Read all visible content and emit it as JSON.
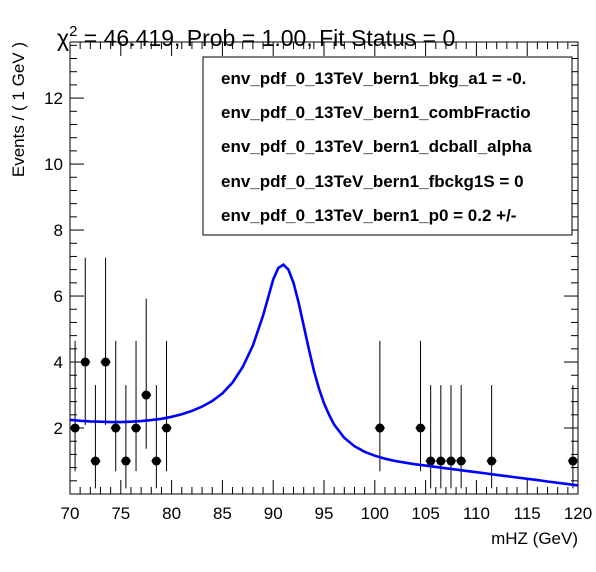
{
  "chart_data": {
    "type": "scatter",
    "title_prefix": "χ",
    "title_sup": "2",
    "title_rest": " = 46.419, Prob = 1.00, Fit Status = 0",
    "xlabel": "mHZ (GeV)",
    "ylabel": "Events / ( 1 GeV )",
    "xlim": [
      70,
      120
    ],
    "ylim": [
      0,
      13.7
    ],
    "x_ticks": [
      70,
      75,
      80,
      85,
      90,
      95,
      100,
      105,
      110,
      115,
      120
    ],
    "y_ticks": [
      2,
      4,
      6,
      8,
      10,
      12
    ],
    "legend_placement": "top-right",
    "legend": [
      "env_pdf_0_13TeV_bern1_bkg_a1 = -0.",
      "env_pdf_0_13TeV_bern1_combFractio",
      "env_pdf_0_13TeV_bern1_dcball_alpha",
      "env_pdf_0_13TeV_bern1_fbckg1S =  0",
      "env_pdf_0_13TeV_bern1_p0 =  0.2 +/-"
    ],
    "points": [
      {
        "x": 70.5,
        "y": 2,
        "lo": 1.31,
        "hi": 2.64
      },
      {
        "x": 71.5,
        "y": 4,
        "lo": 1.91,
        "hi": 3.16
      },
      {
        "x": 72.5,
        "y": 1,
        "lo": 0.83,
        "hi": 2.3
      },
      {
        "x": 73.5,
        "y": 4,
        "lo": 1.91,
        "hi": 3.16
      },
      {
        "x": 74.5,
        "y": 2,
        "lo": 1.31,
        "hi": 2.64
      },
      {
        "x": 75.5,
        "y": 1,
        "lo": 0.83,
        "hi": 2.3
      },
      {
        "x": 76.5,
        "y": 2,
        "lo": 1.31,
        "hi": 2.64
      },
      {
        "x": 77.5,
        "y": 3,
        "lo": 1.63,
        "hi": 2.92
      },
      {
        "x": 78.5,
        "y": 1,
        "lo": 0.83,
        "hi": 2.3
      },
      {
        "x": 79.5,
        "y": 2,
        "lo": 1.31,
        "hi": 2.64
      },
      {
        "x": 100.5,
        "y": 2,
        "lo": 1.31,
        "hi": 2.64
      },
      {
        "x": 104.5,
        "y": 2,
        "lo": 1.31,
        "hi": 2.64
      },
      {
        "x": 105.5,
        "y": 1,
        "lo": 0.83,
        "hi": 2.3
      },
      {
        "x": 106.5,
        "y": 1,
        "lo": 0.83,
        "hi": 2.3
      },
      {
        "x": 107.5,
        "y": 1,
        "lo": 0.83,
        "hi": 2.3
      },
      {
        "x": 108.5,
        "y": 1,
        "lo": 0.83,
        "hi": 2.3
      },
      {
        "x": 111.5,
        "y": 1,
        "lo": 0.83,
        "hi": 2.3
      },
      {
        "x": 119.5,
        "y": 1,
        "lo": 0.83,
        "hi": 2.3
      }
    ],
    "fit_curve": {
      "color": "#0000ff",
      "x": [
        70,
        71,
        72,
        73,
        74,
        75,
        76,
        77,
        78,
        79,
        80,
        81,
        82,
        83,
        84,
        85,
        86,
        87,
        88,
        89,
        89.5,
        90,
        90.5,
        91,
        91.5,
        92,
        92.5,
        93,
        93.5,
        94,
        94.5,
        95,
        95.5,
        96,
        97,
        98,
        99,
        100,
        101,
        102,
        103,
        104,
        105,
        106,
        107,
        108,
        109,
        110,
        111,
        112,
        113,
        114,
        115,
        116,
        117,
        118,
        119,
        120
      ],
      "y": [
        2.25,
        2.22,
        2.2,
        2.19,
        2.18,
        2.18,
        2.19,
        2.21,
        2.24,
        2.28,
        2.34,
        2.42,
        2.52,
        2.65,
        2.82,
        3.05,
        3.38,
        3.85,
        4.5,
        5.4,
        5.95,
        6.5,
        6.85,
        6.95,
        6.8,
        6.4,
        5.8,
        5.1,
        4.4,
        3.75,
        3.2,
        2.75,
        2.4,
        2.1,
        1.7,
        1.45,
        1.28,
        1.16,
        1.07,
        1.0,
        0.95,
        0.9,
        0.86,
        0.82,
        0.78,
        0.74,
        0.7,
        0.66,
        0.62,
        0.58,
        0.54,
        0.5,
        0.46,
        0.42,
        0.38,
        0.34,
        0.3,
        0.26
      ]
    },
    "marker_color": "#000000"
  }
}
